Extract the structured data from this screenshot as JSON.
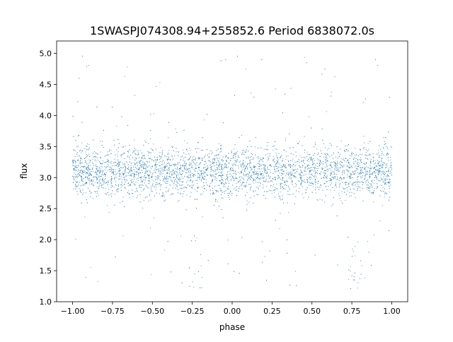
{
  "chart_data": {
    "type": "scatter",
    "title": "1SWASPJ074308.94+255852.6 Period 6838072.0s",
    "xlabel": "phase",
    "ylabel": "flux",
    "xlim": [
      -1.1,
      1.1
    ],
    "ylim": [
      1.0,
      5.2
    ],
    "xticks": [
      -1.0,
      -0.75,
      -0.5,
      -0.25,
      0.0,
      0.25,
      0.5,
      0.75,
      1.0
    ],
    "xtick_labels": [
      "−1.00",
      "−0.75",
      "−0.50",
      "−0.25",
      "0.00",
      "0.25",
      "0.50",
      "0.75",
      "1.00"
    ],
    "yticks": [
      1.0,
      1.5,
      2.0,
      2.5,
      3.0,
      3.5,
      4.0,
      4.5,
      5.0
    ],
    "ytick_labels": [
      "1.0",
      "1.5",
      "2.0",
      "2.5",
      "3.0",
      "3.5",
      "4.0",
      "4.5",
      "5.0"
    ],
    "marker_color": "#1f77b4",
    "grid": false,
    "series": [
      {
        "x_range": [
          -1.0,
          1.0
        ],
        "baseline_flux": 3.1,
        "typical_flux_range": [
          2.7,
          3.5
        ],
        "dip": {
          "phase": [
            -0.27,
            -0.18
          ],
          "flux_min": 1.2
        },
        "dip_repeat": {
          "phase": [
            0.73,
            0.82
          ],
          "flux_min": 1.2
        },
        "outlier_flux_range": [
          1.2,
          5.0
        ]
      }
    ]
  }
}
